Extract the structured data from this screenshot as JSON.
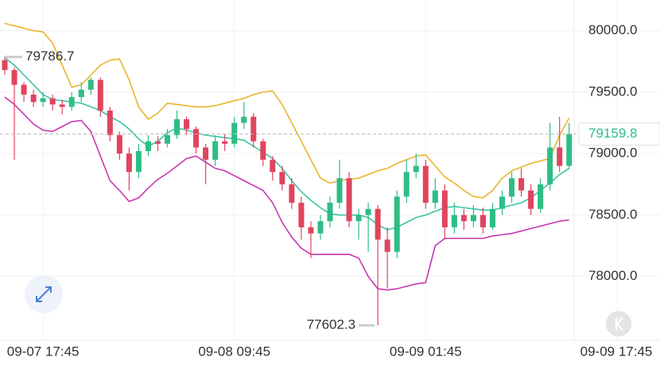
{
  "chart_data": {
    "type": "candlestick",
    "open": [
      79760,
      79680,
      79560,
      79480,
      79420,
      79450,
      79400,
      79380,
      79460,
      79520,
      79600,
      79350,
      79150,
      79000,
      78850,
      79020,
      79100,
      79080,
      79150,
      79280,
      79200,
      79050,
      78950,
      79100,
      79080,
      79250,
      79300,
      79100,
      78950,
      78850,
      78750,
      78600,
      78400,
      78350,
      78450,
      78600,
      78800,
      78450,
      78500,
      78550,
      78300,
      78200,
      78650,
      78850,
      78900,
      78600,
      78700,
      78400,
      78500,
      78450,
      78500,
      78400,
      78550,
      78650,
      78800,
      78700,
      78550,
      78750,
      79050,
      78900
    ],
    "high": [
      79786.7,
      79700,
      79580,
      79520,
      79500,
      79480,
      79440,
      79500,
      79580,
      79620,
      79620,
      79380,
      79180,
      79050,
      79080,
      79150,
      79140,
      79200,
      79350,
      79300,
      79220,
      79080,
      79150,
      79160,
      79300,
      79420,
      79330,
      79120,
      78980,
      78900,
      78800,
      78650,
      78450,
      78500,
      78650,
      78950,
      78850,
      78550,
      78600,
      78580,
      78400,
      78700,
      78950,
      79000,
      78950,
      78800,
      78750,
      78600,
      78550,
      78580,
      78560,
      78600,
      78700,
      78850,
      78880,
      78750,
      78800,
      79250,
      79300,
      79250
    ],
    "low": [
      79640,
      78950,
      79420,
      79380,
      79380,
      79350,
      79320,
      79350,
      79420,
      79480,
      79300,
      79100,
      78950,
      78700,
      78800,
      78980,
      79020,
      79050,
      79120,
      79150,
      79000,
      78750,
      78900,
      79020,
      79050,
      79200,
      79050,
      78900,
      78780,
      78700,
      78550,
      78300,
      78150,
      78300,
      78400,
      78550,
      78400,
      78300,
      78200,
      77602.3,
      77900,
      78150,
      78600,
      78800,
      78550,
      78550,
      78300,
      78350,
      78380,
      78400,
      78350,
      78380,
      78500,
      78600,
      78650,
      78500,
      78520,
      78700,
      78850,
      78880
    ],
    "close": [
      79680,
      79560,
      79480,
      79420,
      79450,
      79400,
      79380,
      79460,
      79520,
      79600,
      79350,
      79150,
      79000,
      78850,
      79020,
      79100,
      79080,
      79150,
      79280,
      79200,
      79050,
      78950,
      79100,
      79080,
      79250,
      79300,
      79100,
      78950,
      78850,
      78750,
      78600,
      78400,
      78350,
      78450,
      78600,
      78800,
      78450,
      78500,
      78550,
      78300,
      78200,
      78650,
      78850,
      78900,
      78600,
      78700,
      78400,
      78500,
      78450,
      78500,
      78400,
      78550,
      78650,
      78800,
      78700,
      78550,
      78750,
      79050,
      78900,
      79159.8
    ],
    "up_color": "#2ebd85",
    "down_color": "#e0445e",
    "bands": [
      {
        "color": "#ebb42a",
        "values": [
          80060,
          80040,
          80020,
          80000,
          79990,
          79900,
          79720,
          79540,
          79560,
          79640,
          79720,
          79760,
          79770,
          79600,
          79380,
          79280,
          79330,
          79410,
          79400,
          79390,
          79380,
          79380,
          79390,
          79410,
          79430,
          79450,
          79480,
          79500,
          79510,
          79400,
          79250,
          79100,
          78950,
          78800,
          78760,
          78780,
          78790,
          78800,
          78830,
          78860,
          78880,
          78920,
          78950,
          78980,
          78990,
          78900,
          78810,
          78760,
          78700,
          78650,
          78640,
          78700,
          78800,
          78860,
          78890,
          78920,
          78940,
          78960,
          79150,
          79290
        ]
      },
      {
        "color": "#3cc3a6",
        "values": [
          79780,
          79720,
          79640,
          79560,
          79480,
          79440,
          79430,
          79420,
          79410,
          79380,
          79350,
          79300,
          79260,
          79200,
          79120,
          79060,
          79100,
          79170,
          79210,
          79190,
          79170,
          79150,
          79140,
          79130,
          79120,
          79110,
          79060,
          79010,
          78960,
          78880,
          78780,
          78690,
          78620,
          78560,
          78510,
          78500,
          78500,
          78500,
          78480,
          78420,
          78380,
          78400,
          78440,
          78480,
          78500,
          78530,
          78560,
          78570,
          78560,
          78550,
          78540,
          78540,
          78560,
          78580,
          78600,
          78640,
          78700,
          78760,
          78830,
          78880
        ]
      },
      {
        "color": "#c936b0",
        "values": [
          79460,
          79400,
          79320,
          79240,
          79190,
          79180,
          79220,
          79260,
          79270,
          79180,
          78980,
          78780,
          78700,
          78610,
          78640,
          78720,
          78790,
          78840,
          78900,
          78960,
          78980,
          78930,
          78880,
          78860,
          78820,
          78780,
          78740,
          78700,
          78600,
          78440,
          78320,
          78230,
          78180,
          78180,
          78180,
          78180,
          78180,
          78150,
          78000,
          77900,
          77890,
          77900,
          77920,
          77940,
          77950,
          78250,
          78310,
          78310,
          78310,
          78310,
          78310,
          78330,
          78340,
          78350,
          78370,
          78390,
          78410,
          78430,
          78450,
          78460
        ]
      }
    ],
    "ylim": [
      77480,
      80250
    ],
    "yticks": [
      {
        "value": 78000,
        "label": "78000.0"
      },
      {
        "value": 78500,
        "label": "78500.0"
      },
      {
        "value": 79000,
        "label": "79000.0"
      },
      {
        "value": 79500,
        "label": "79500.0"
      },
      {
        "value": 80000,
        "label": "80000.0"
      }
    ],
    "xlim": [
      -0.5,
      68.5
    ],
    "xticks": [
      {
        "value": 4,
        "label": "09-07 17:45"
      },
      {
        "value": 24,
        "label": "09-08 09:45"
      },
      {
        "value": 44,
        "label": "09-09 01:45"
      },
      {
        "value": 64,
        "label": "09-09 17:45"
      }
    ],
    "max_price": 79786.7,
    "min_price": 77602.3,
    "last_price": 79159.8,
    "grid": true
  }
}
